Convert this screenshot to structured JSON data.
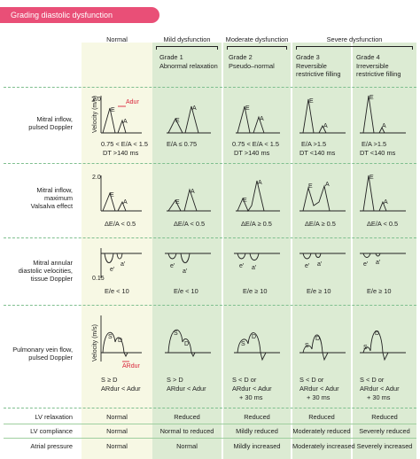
{
  "title": "Grading diastolic dysfunction",
  "columns": [
    {
      "header": "Normal",
      "grade": "",
      "sub": ""
    },
    {
      "header": "Mild dysfunction",
      "grade": "Grade 1",
      "sub": "Abnormal relaxation"
    },
    {
      "header": "Moderate dysfunction",
      "grade": "Grade 2",
      "sub": "Pseudo–normal"
    },
    {
      "header": "Severe dysfunction",
      "grade": "Grade 3",
      "sub": "Reversible restrictive filling"
    },
    {
      "header": "",
      "grade": "Grade 4",
      "sub": "Irreversible restrictive filling"
    }
  ],
  "rows": {
    "mitral_inflow": {
      "label1": "Mitral inflow,",
      "label2": "pulsed Doppler",
      "c0a": "0.75 < E/A < 1.5",
      "c0b": "DT >140 ms",
      "c1a": "E/A ≤ 0.75",
      "c2a": "0.75 < E/A < 1.5",
      "c2b": "DT >140 ms",
      "c3a": "E/A >1.5",
      "c3b": "DT <140 ms",
      "c4a": "E/A >1.5",
      "c4b": "DT <140 ms"
    },
    "valsalva": {
      "label1": "Mitral inflow,",
      "label2": "maximum",
      "label3": "Valsalva effect",
      "c0": "ΔE/A < 0.5",
      "c1": "ΔE/A < 0.5",
      "c2": "ΔE/A ≥ 0.5",
      "c3": "ΔE/A ≥ 0.5",
      "c4": "ΔE/A < 0.5"
    },
    "annular": {
      "label1": "Mitral annular",
      "label2": "diastolic velocities,",
      "label3": "tissue Doppler",
      "c0": "E/e < 10",
      "c1": "E/e < 10",
      "c2": "E/e ≥ 10",
      "c3": "E/e ≥ 10",
      "c4": "E/e ≥ 10"
    },
    "pv": {
      "label1": "Pulmonary vein flow,",
      "label2": "pulsed Doppler",
      "c0a": "S ≥ D",
      "c0b": "ARdur < Adur",
      "c1a": "S > D",
      "c1b": "ARdur < Adur",
      "c2a": "S < D or",
      "c2b": "ARdur < Adur",
      "c2c": "+ 30 ms",
      "c3a": "S < D or",
      "c3b": "ARdur < Adur",
      "c3c": "+ 30 ms",
      "c4a": "S < D or",
      "c4b": "ARdur < Adur",
      "c4c": "+ 30 ms"
    }
  },
  "axis": {
    "v20": "2.0",
    "v015": "0.15",
    "velocity": "Velocity (m/s)",
    "E": "E",
    "A": "A",
    "Adur": "Adur",
    "ARdur": "ARdur",
    "S": "S",
    "D": "D",
    "e1": "e′",
    "a1": "a′"
  },
  "summary": [
    {
      "label": "LV relaxation",
      "values": [
        "Normal",
        "Reduced",
        "Reduced",
        "Reduced",
        "Reduced"
      ]
    },
    {
      "label": "LV compliance",
      "values": [
        "Normal",
        "Normal to reduced",
        "Mildly reduced",
        "Moderately reduced",
        "Severely reduced"
      ]
    },
    {
      "label": "Atrial pressure",
      "values": [
        "Normal",
        "Normal",
        "Mildly increased",
        "Moderately increased",
        "Severely increased"
      ]
    }
  ],
  "colors": {
    "title_bg": "#e94f77",
    "normal_bg": "#f7f8e4",
    "disease_bg": "#dcebd3",
    "accent_red": "#d9243a"
  }
}
